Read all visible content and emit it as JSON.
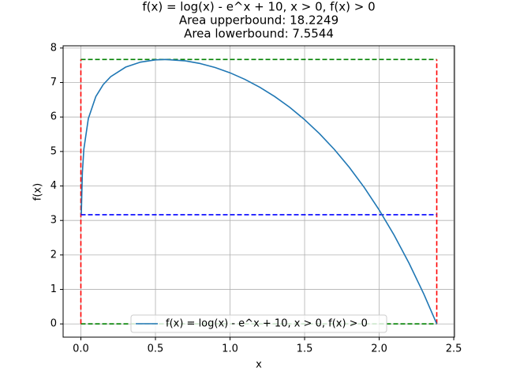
{
  "chart_data": {
    "type": "line",
    "title": "f(x) = log(x) - e^x + 10, x > 0, f(x) > 0",
    "subtitle": [
      "Area upperbound: 18.2249",
      "Area lowerbound: 7.5544"
    ],
    "x_label": "x",
    "y_label": "f(x)",
    "x": [
      0.003,
      0.01,
      0.02,
      0.05,
      0.1,
      0.15,
      0.2,
      0.3,
      0.4,
      0.5,
      0.567,
      0.7,
      0.8,
      0.9,
      1.0,
      1.1,
      1.2,
      1.3,
      1.4,
      1.5,
      1.6,
      1.7,
      1.8,
      1.9,
      2.0,
      2.1,
      2.2,
      2.3,
      2.386
    ],
    "series": [
      {
        "name": "f(x) = log(x) - e^x + 10, x > 0, f(x) > 0",
        "color": "#1f77b4",
        "values": [
          3.19,
          4.385,
          5.068,
          5.953,
          6.592,
          6.941,
          7.17,
          7.446,
          7.592,
          7.658,
          7.669,
          7.629,
          7.551,
          7.435,
          7.282,
          7.091,
          6.862,
          6.593,
          6.281,
          5.923,
          5.517,
          5.057,
          4.538,
          3.956,
          3.304,
          2.576,
          1.763,
          0.859,
          0.0
        ]
      }
    ],
    "reference_lines": [
      {
        "x": [
          0,
          2.386
        ],
        "values": [
          7.669,
          7.669
        ],
        "color": "#008000"
      },
      {
        "x": [
          0,
          2.386
        ],
        "values": [
          0,
          0
        ],
        "color": "#008000"
      },
      {
        "x": [
          0,
          0
        ],
        "values": [
          0,
          7.669
        ],
        "color": "#ff0000"
      },
      {
        "x": [
          2.386,
          2.386
        ],
        "values": [
          0,
          7.669
        ],
        "color": "#ff0000"
      },
      {
        "x": [
          0,
          2.386
        ],
        "values": [
          3.166,
          3.166
        ],
        "color": "#0000ff"
      }
    ],
    "xlim": [
      -0.119,
      2.505
    ],
    "ylim": [
      -0.384,
      8.065
    ],
    "xticks": [
      {
        "value": 0,
        "label": "0.0"
      },
      0.5,
      {
        "value": 1,
        "label": "1.0"
      },
      1.5,
      {
        "value": 2,
        "label": "2.0"
      },
      2.5
    ],
    "yticks": [
      0,
      1,
      2,
      3,
      4,
      5,
      6,
      7,
      8
    ],
    "grid": true,
    "legend": "lower center"
  }
}
